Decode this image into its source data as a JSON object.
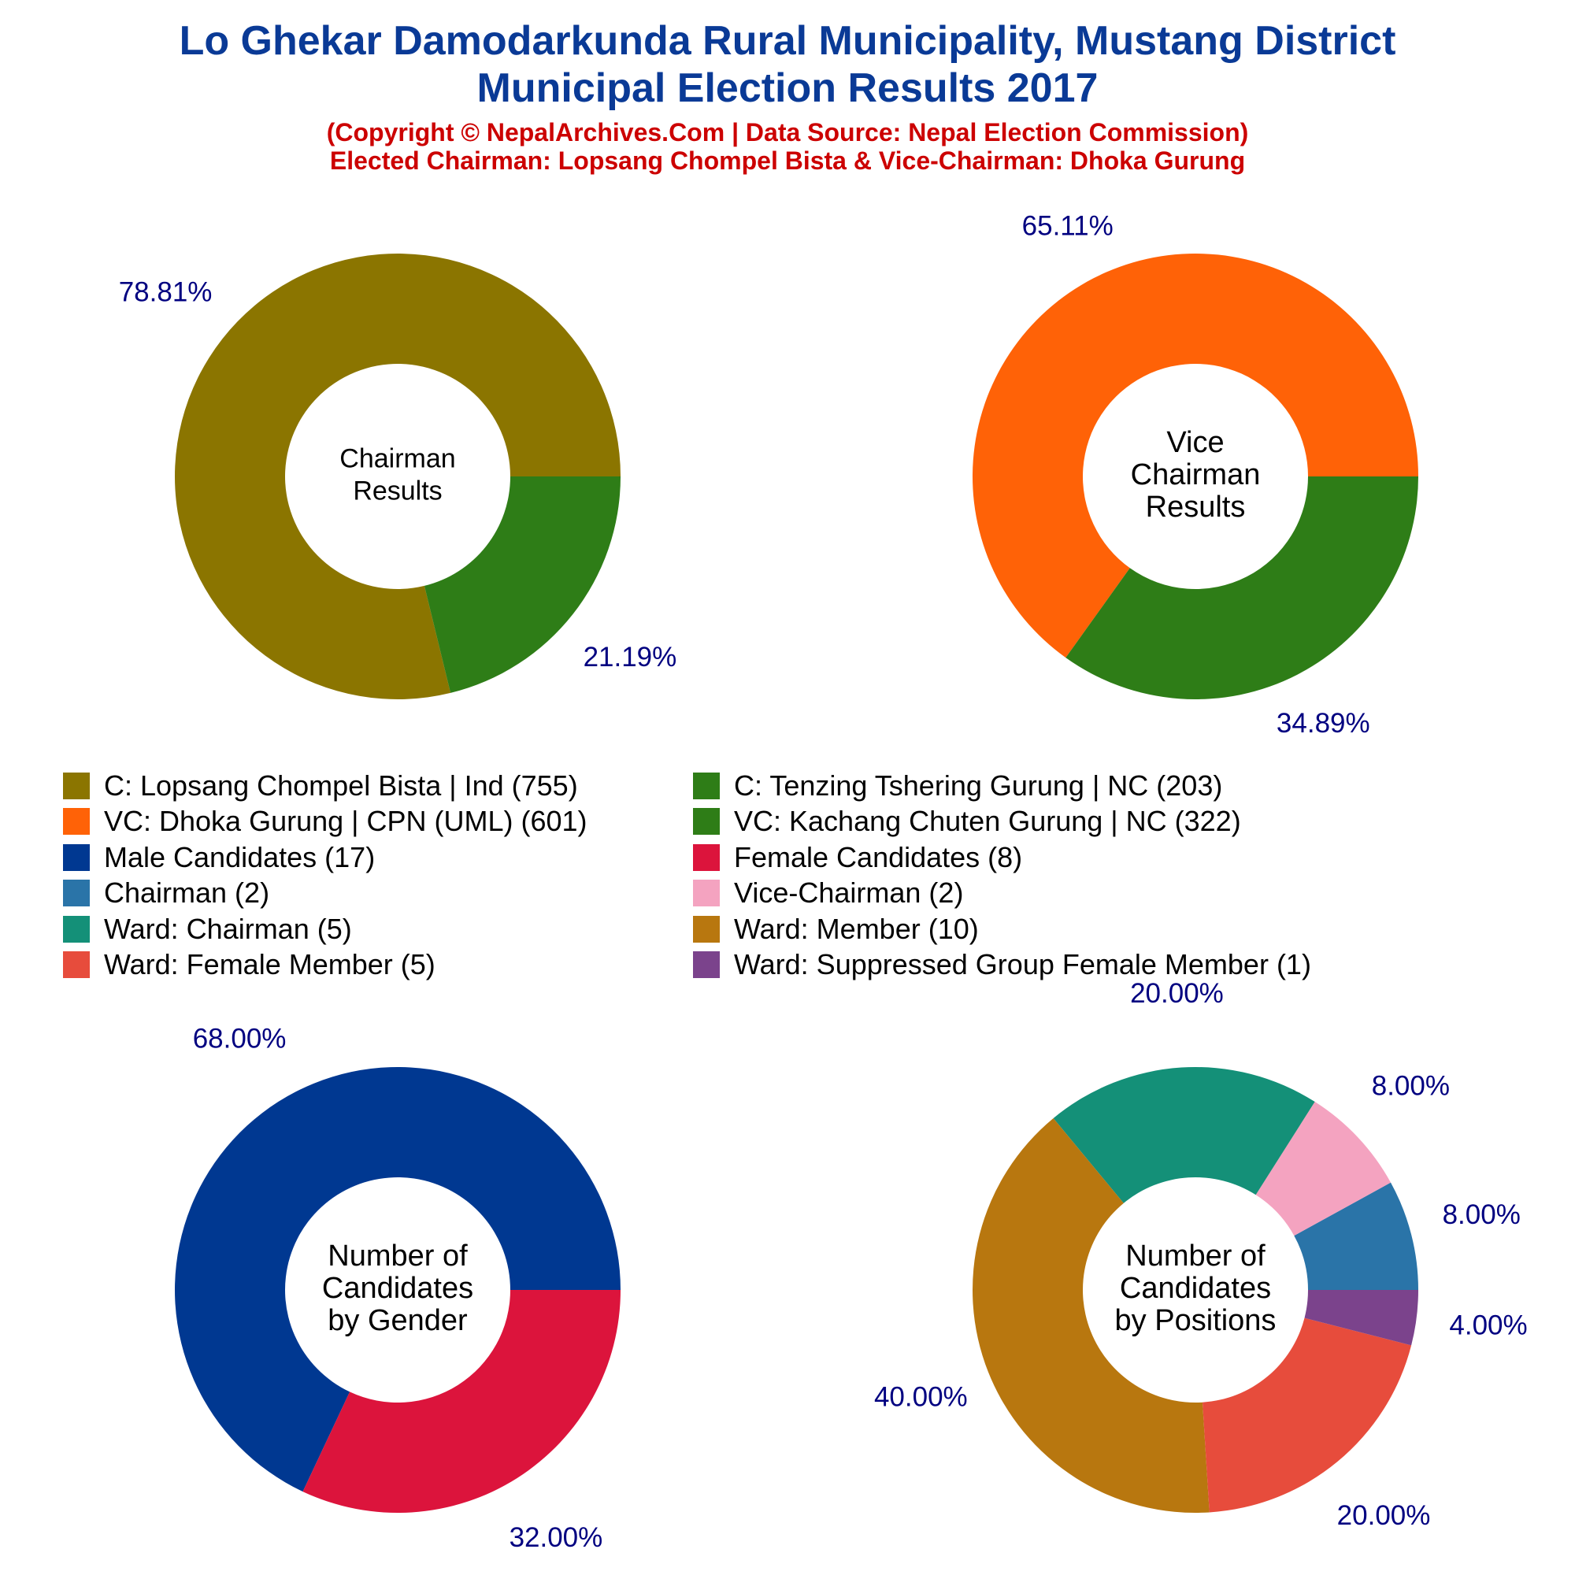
{
  "header": {
    "title_line1": "Lo Ghekar Damodarkunda Rural Municipality, Mustang District",
    "title_line2": "Municipal Election Results 2017",
    "subtitle_line1": "(Copyright © NepalArchives.Com | Data Source: Nepal Election Commission)",
    "subtitle_line2": "Elected Chairman: Lopsang Chompel Bista & Vice-Chairman: Dhoka Gurung"
  },
  "colors": {
    "title": "#0a3a96",
    "subtitle": "#cc0000",
    "percent_label": "#000080"
  },
  "legend": [
    {
      "label": "C: Lopsang Chompel Bista | Ind (755)",
      "color": "#8b7500"
    },
    {
      "label": "C: Tenzing Tshering Gurung | NC (203)",
      "color": "#2e7d17"
    },
    {
      "label": "VC: Dhoka Gurung | CPN (UML) (601)",
      "color": "#ff6207"
    },
    {
      "label": "VC: Kachang Chuten Gurung | NC (322)",
      "color": "#2e7d17"
    },
    {
      "label": "Male Candidates (17)",
      "color": "#003891"
    },
    {
      "label": "Female Candidates (8)",
      "color": "#dc143c"
    },
    {
      "label": "Chairman (2)",
      "color": "#2a74a8"
    },
    {
      "label": "Vice-Chairman (2)",
      "color": "#f4a3c0"
    },
    {
      "label": "Ward: Chairman (5)",
      "color": "#149078"
    },
    {
      "label": "Ward: Member (10)",
      "color": "#b8770f"
    },
    {
      "label": "Ward: Female Member (5)",
      "color": "#e74c3c"
    },
    {
      "label": "Ward: Suppressed Group Female Member (1)",
      "color": "#7b438c"
    }
  ],
  "chart_data": [
    {
      "type": "pie",
      "center_label": [
        "Chairman",
        "Results"
      ],
      "series": [
        {
          "name": "C: Lopsang Chompel Bista | Ind",
          "value": 755,
          "percent_label": "78.81%",
          "color": "#8b7500"
        },
        {
          "name": "C: Tenzing Tshering Gurung | NC",
          "value": 203,
          "percent_label": "21.19%",
          "color": "#2e7d17"
        }
      ]
    },
    {
      "type": "pie",
      "center_label": [
        "Vice",
        "Chairman",
        "Results"
      ],
      "series": [
        {
          "name": "VC: Dhoka Gurung | CPN (UML)",
          "value": 601,
          "percent_label": "65.11%",
          "color": "#ff6207"
        },
        {
          "name": "VC: Kachang Chuten Gurung | NC",
          "value": 322,
          "percent_label": "34.89%",
          "color": "#2e7d17"
        }
      ]
    },
    {
      "type": "pie",
      "center_label": [
        "Number of",
        "Candidates",
        "by Gender"
      ],
      "series": [
        {
          "name": "Male Candidates",
          "value": 17,
          "percent_label": "68.00%",
          "color": "#003891"
        },
        {
          "name": "Female Candidates",
          "value": 8,
          "percent_label": "32.00%",
          "color": "#dc143c"
        }
      ]
    },
    {
      "type": "pie",
      "center_label": [
        "Number of",
        "Candidates",
        "by Positions"
      ],
      "series": [
        {
          "name": "Chairman",
          "value": 2,
          "percent_label": "8.00%",
          "color": "#2a74a8"
        },
        {
          "name": "Vice-Chairman",
          "value": 2,
          "percent_label": "8.00%",
          "color": "#f4a3c0"
        },
        {
          "name": "Ward: Chairman",
          "value": 5,
          "percent_label": "20.00%",
          "color": "#149078"
        },
        {
          "name": "Ward: Member",
          "value": 10,
          "percent_label": "40.00%",
          "color": "#b8770f"
        },
        {
          "name": "Ward: Female Member",
          "value": 5,
          "percent_label": "20.00%",
          "color": "#e74c3c"
        },
        {
          "name": "Ward: Suppressed Group Female Member",
          "value": 1,
          "percent_label": "4.00%",
          "color": "#7b438c"
        }
      ]
    }
  ]
}
